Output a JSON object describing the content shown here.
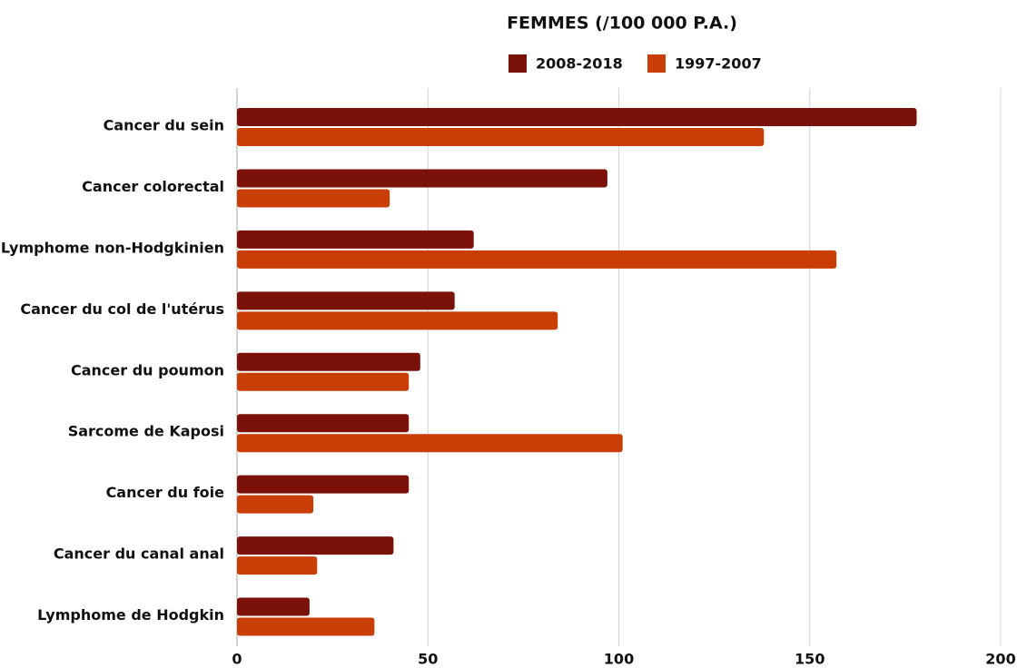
{
  "chart_data": {
    "type": "bar",
    "orientation": "horizontal",
    "title": "FEMMES (/100 000 P.A.)",
    "categories": [
      "Cancer du sein",
      "Cancer colorectal",
      "Lymphome non-Hodgkinien",
      "Cancer du col de l'utérus",
      "Cancer du poumon",
      "Sarcome de Kaposi",
      "Cancer du foie",
      "Cancer du canal anal",
      "Lymphome de Hodgkin"
    ],
    "series": [
      {
        "name": "2008-2018",
        "color": "#7b1209",
        "values": [
          178,
          97,
          62,
          57,
          48,
          45,
          45,
          41,
          19
        ]
      },
      {
        "name": "1997-2007",
        "color": "#c93d06",
        "values": [
          138,
          40,
          157,
          84,
          45,
          101,
          20,
          21,
          36
        ]
      }
    ],
    "xlim": [
      0,
      200
    ],
    "xticks": [
      0,
      50,
      100,
      150,
      200
    ],
    "grid": true,
    "legend": "top"
  }
}
